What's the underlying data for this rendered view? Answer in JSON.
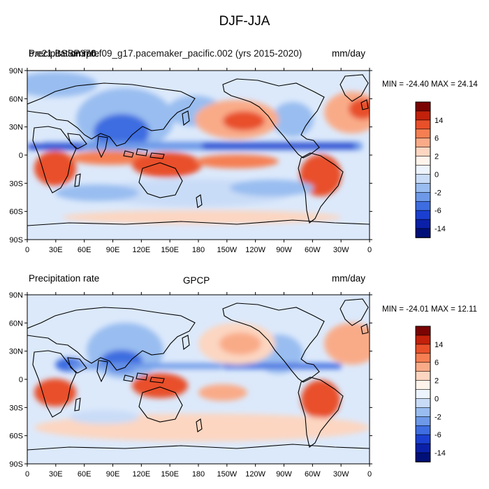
{
  "title": "DJF-JJA",
  "panels": [
    {
      "left_label_a": "Precipitation rate",
      "left_label_b": "b.e21.BSSP370",
      "center_label": "cmip6.f09_g17.pacemaker_pacific.002 (yrs 2015-2020)",
      "units": "mm/day",
      "minmax": "MIN = -24.40  MAX =  24.14"
    },
    {
      "left_label": "Precipitation rate",
      "center_label": "GPCP",
      "units": "mm/day",
      "minmax": "MIN = -24.01  MAX =  12.11"
    }
  ],
  "axes": {
    "lat_ticks": [
      "90N",
      "60N",
      "30N",
      "0",
      "30S",
      "60S",
      "90S"
    ],
    "lon_ticks": [
      "0",
      "30E",
      "60E",
      "90E",
      "120E",
      "150E",
      "180",
      "150W",
      "120W",
      "90W",
      "60W",
      "30W",
      "0"
    ]
  },
  "colorbar": {
    "labels": [
      "14",
      "6",
      "2",
      "0",
      "-2",
      "-6",
      "-14"
    ],
    "colors": [
      "#7a0403",
      "#c2210b",
      "#e8502a",
      "#f57f52",
      "#f9ab88",
      "#fcd6c1",
      "#fff4ec",
      "#eef4fd",
      "#c9dcf7",
      "#99bdf0",
      "#6d99e8",
      "#3d6de0",
      "#1a3fd0",
      "#0a20a8",
      "#001078"
    ]
  },
  "colors": {
    "ocean_base": "#dce9fb",
    "wet_blue": "#3d6de0",
    "dry_red": "#e8502a",
    "coast": "#000000"
  }
}
